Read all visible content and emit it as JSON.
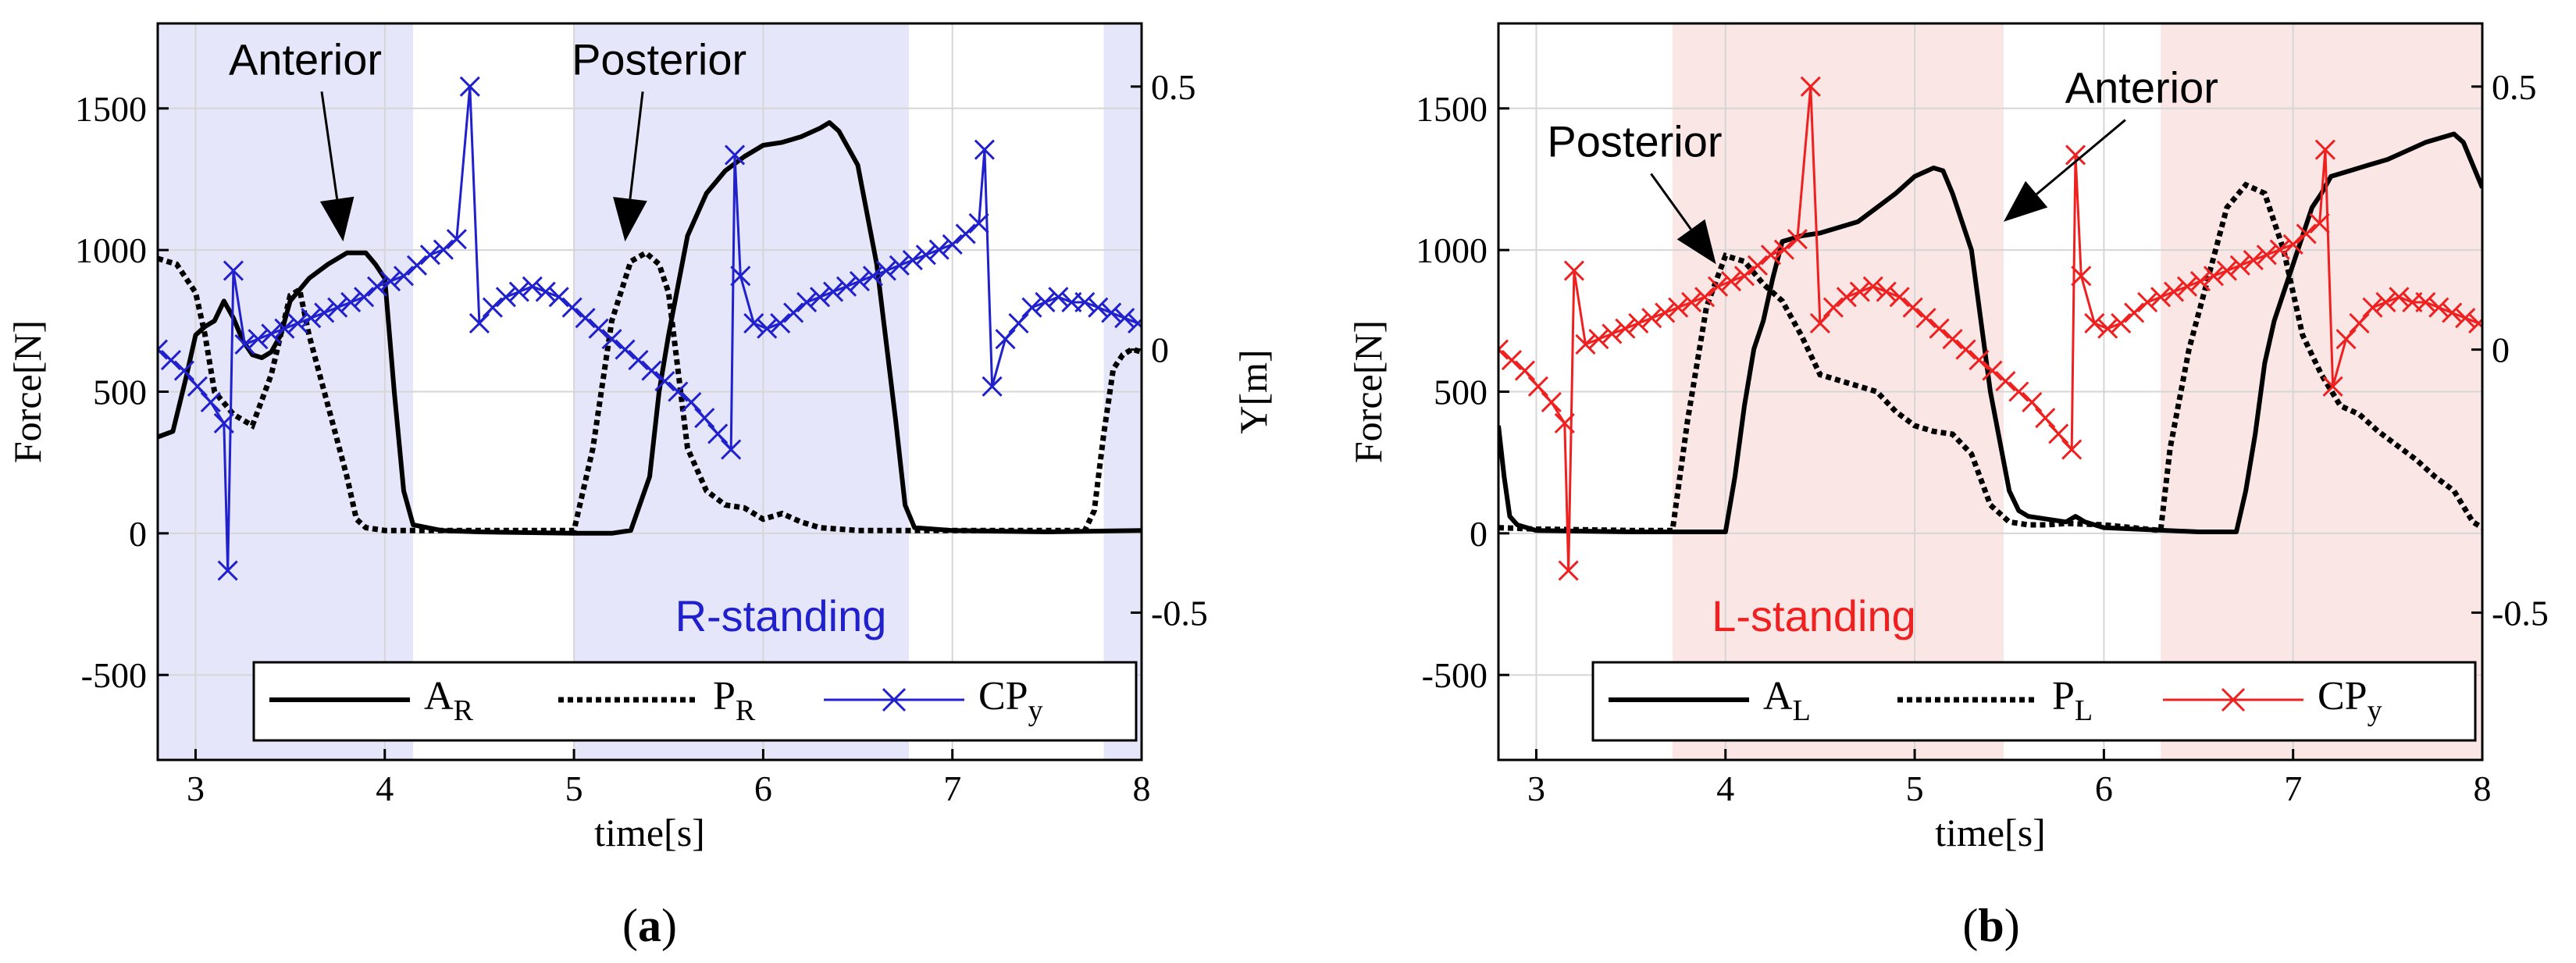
{
  "figure": {
    "panels": [
      {
        "label_open": "(",
        "label_letter": "a",
        "label_close": ")"
      },
      {
        "label_open": "(",
        "label_letter": "b",
        "label_close": ")"
      }
    ]
  },
  "chart_data": [
    {
      "type": "line",
      "panel": "a",
      "title": "",
      "xlabel": "time[s]",
      "ylabel": "Force[N]",
      "y2label": "Y[m]",
      "xlim": [
        2.8,
        8
      ],
      "ylim": [
        -800,
        1800
      ],
      "y2lim": [
        -0.78,
        0.62
      ],
      "xticks": [
        3,
        4,
        5,
        6,
        7,
        8
      ],
      "yticks": [
        -500,
        0,
        500,
        1000,
        1500
      ],
      "y2ticks": [
        -0.5,
        0,
        0.5
      ],
      "xtick_labels": [
        "3",
        "4",
        "5",
        "6",
        "7",
        "8"
      ],
      "ytick_labels": [
        "-500",
        "0",
        "500",
        "1000",
        "1500"
      ],
      "y2tick_labels": [
        "-0.5",
        "0",
        "0.5"
      ],
      "grid": true,
      "stance_label": "R-standing",
      "stance_color": "#2020cc",
      "stance_shade": "#e6e6fb",
      "shaded_intervals": [
        [
          2.8,
          4.15
        ],
        [
          5.0,
          6.77
        ],
        [
          7.8,
          8.0
        ]
      ],
      "annotations": [
        {
          "text": "Anterior",
          "text_x": 3.58,
          "text_y": 1620,
          "arrow_to_x": 3.78,
          "arrow_to_y": 1030
        },
        {
          "text": "Posterior",
          "text_x": 5.45,
          "text_y": 1620,
          "arrow_to_x": 5.27,
          "arrow_to_y": 1030
        }
      ],
      "legend": {
        "placement": "bottom",
        "entries": [
          "A",
          "P",
          "CP"
        ],
        "subscripts": [
          "R",
          "R",
          "y"
        ]
      },
      "series": [
        {
          "name": "A_R",
          "axis": "left",
          "style": "solid",
          "color": "#000000",
          "x": [
            2.8,
            2.88,
            2.95,
            3.0,
            3.05,
            3.1,
            3.15,
            3.2,
            3.25,
            3.3,
            3.35,
            3.4,
            3.45,
            3.5,
            3.6,
            3.7,
            3.8,
            3.9,
            3.95,
            4.0,
            4.05,
            4.1,
            4.15,
            4.3,
            4.5,
            5.0,
            5.2,
            5.3,
            5.4,
            5.45,
            5.5,
            5.6,
            5.7,
            5.8,
            5.9,
            6.0,
            6.1,
            6.2,
            6.3,
            6.35,
            6.4,
            6.5,
            6.6,
            6.7,
            6.75,
            6.8,
            7.0,
            7.5,
            8.0
          ],
          "y": [
            340,
            360,
            550,
            700,
            730,
            750,
            820,
            760,
            680,
            630,
            620,
            640,
            700,
            820,
            900,
            950,
            990,
            990,
            950,
            900,
            500,
            150,
            30,
            10,
            5,
            0,
            0,
            10,
            200,
            500,
            700,
            1050,
            1200,
            1280,
            1330,
            1370,
            1380,
            1400,
            1430,
            1450,
            1420,
            1300,
            950,
            400,
            100,
            20,
            10,
            5,
            10
          ]
        },
        {
          "name": "P_R",
          "axis": "left",
          "style": "dotted",
          "color": "#000000",
          "x": [
            2.8,
            2.9,
            3.0,
            3.05,
            3.1,
            3.2,
            3.3,
            3.4,
            3.5,
            3.55,
            3.6,
            3.7,
            3.8,
            3.85,
            3.9,
            4.0,
            4.5,
            5.0,
            5.1,
            5.2,
            5.3,
            5.38,
            5.45,
            5.5,
            5.6,
            5.7,
            5.8,
            5.9,
            6.0,
            6.1,
            6.2,
            6.3,
            6.5,
            7.0,
            7.5,
            7.7,
            7.75,
            7.8,
            7.85,
            7.9,
            7.95,
            8.0
          ],
          "y": [
            970,
            950,
            850,
            700,
            500,
            420,
            380,
            560,
            840,
            860,
            700,
            450,
            200,
            50,
            20,
            10,
            10,
            10,
            300,
            750,
            960,
            990,
            950,
            850,
            300,
            150,
            100,
            90,
            50,
            70,
            40,
            20,
            10,
            10,
            10,
            10,
            80,
            350,
            580,
            630,
            650,
            640
          ]
        },
        {
          "name": "CP_y",
          "axis": "right",
          "style": "solid-x",
          "color": "#2020cc",
          "x": [
            2.8,
            2.87,
            2.94,
            3.01,
            3.08,
            3.15,
            3.17,
            3.2,
            3.26,
            3.33,
            3.4,
            3.47,
            3.54,
            3.61,
            3.68,
            3.75,
            3.82,
            3.89,
            3.96,
            4.03,
            4.1,
            4.17,
            4.24,
            4.31,
            4.38,
            4.45,
            4.5,
            4.57,
            4.64,
            4.71,
            4.78,
            4.85,
            4.92,
            4.99,
            5.06,
            5.13,
            5.2,
            5.27,
            5.34,
            5.41,
            5.48,
            5.55,
            5.62,
            5.69,
            5.76,
            5.83,
            5.85,
            5.88,
            5.95,
            6.02,
            6.09,
            6.16,
            6.23,
            6.3,
            6.37,
            6.44,
            6.51,
            6.58,
            6.65,
            6.72,
            6.79,
            6.86,
            6.93,
            7.0,
            7.07,
            7.14,
            7.17,
            7.21,
            7.28,
            7.35,
            7.42,
            7.49,
            7.56,
            7.63,
            7.7,
            7.77,
            7.84,
            7.91,
            7.98
          ],
          "y": [
            0.0,
            -0.02,
            -0.04,
            -0.07,
            -0.1,
            -0.14,
            -0.42,
            0.15,
            0.01,
            0.02,
            0.03,
            0.04,
            0.05,
            0.06,
            0.07,
            0.08,
            0.09,
            0.1,
            0.12,
            0.13,
            0.14,
            0.16,
            0.18,
            0.19,
            0.21,
            0.5,
            0.05,
            0.08,
            0.1,
            0.11,
            0.12,
            0.11,
            0.1,
            0.08,
            0.06,
            0.04,
            0.02,
            0.0,
            -0.02,
            -0.04,
            -0.06,
            -0.08,
            -0.1,
            -0.13,
            -0.16,
            -0.19,
            0.37,
            0.14,
            0.05,
            0.04,
            0.05,
            0.07,
            0.09,
            0.1,
            0.11,
            0.12,
            0.13,
            0.14,
            0.15,
            0.16,
            0.17,
            0.18,
            0.19,
            0.2,
            0.22,
            0.24,
            0.38,
            -0.07,
            0.02,
            0.05,
            0.08,
            0.09,
            0.1,
            0.09,
            0.09,
            0.08,
            0.07,
            0.06,
            0.05
          ]
        }
      ]
    },
    {
      "type": "line",
      "panel": "b",
      "title": "",
      "xlabel": "time[s]",
      "ylabel": "Force[N]",
      "y2label": "Y[m]",
      "xlim": [
        2.8,
        8
      ],
      "ylim": [
        -800,
        1800
      ],
      "y2lim": [
        -0.78,
        0.62
      ],
      "xticks": [
        3,
        4,
        5,
        6,
        7,
        8
      ],
      "yticks": [
        -500,
        0,
        500,
        1000,
        1500
      ],
      "y2ticks": [
        -0.5,
        0,
        0.5
      ],
      "xtick_labels": [
        "3",
        "4",
        "5",
        "6",
        "7",
        "8"
      ],
      "ytick_labels": [
        "-500",
        "0",
        "500",
        "1000",
        "1500"
      ],
      "y2tick_labels": [
        "-0.5",
        "0",
        "0.5"
      ],
      "grid": true,
      "stance_label": "L-standing",
      "stance_color": "#ee2020",
      "stance_shade": "#fbe6e6",
      "shaded_intervals": [
        [
          3.72,
          5.47
        ],
        [
          6.3,
          8.0
        ]
      ],
      "annotations": [
        {
          "text": "Posterior",
          "text_x": 3.52,
          "text_y": 1330,
          "arrow_to_x": 3.95,
          "arrow_to_y": 950
        },
        {
          "text": "Anterior",
          "text_x": 6.2,
          "text_y": 1520,
          "arrow_to_x": 5.47,
          "arrow_to_y": 1100
        }
      ],
      "legend": {
        "placement": "bottom",
        "entries": [
          "A",
          "P",
          "CP"
        ],
        "subscripts": [
          "L",
          "L",
          "y"
        ]
      },
      "series": [
        {
          "name": "A_L",
          "axis": "left",
          "style": "solid",
          "color": "#000000",
          "x": [
            2.8,
            2.83,
            2.86,
            2.9,
            3.0,
            3.5,
            4.0,
            4.05,
            4.1,
            4.15,
            4.2,
            4.25,
            4.3,
            4.4,
            4.5,
            4.6,
            4.7,
            4.8,
            4.9,
            5.0,
            5.1,
            5.15,
            5.2,
            5.3,
            5.4,
            5.5,
            5.55,
            5.6,
            5.7,
            5.8,
            5.85,
            5.9,
            6.0,
            6.5,
            6.7,
            6.75,
            6.8,
            6.85,
            6.9,
            6.95,
            7.0,
            7.05,
            7.1,
            7.15,
            7.2,
            7.3,
            7.4,
            7.5,
            7.6,
            7.7,
            7.8,
            7.85,
            7.9,
            8.0
          ],
          "y": [
            380,
            200,
            60,
            30,
            10,
            5,
            5,
            200,
            450,
            650,
            750,
            900,
            1030,
            1050,
            1060,
            1080,
            1100,
            1150,
            1200,
            1260,
            1290,
            1280,
            1200,
            1000,
            500,
            150,
            80,
            60,
            50,
            40,
            60,
            40,
            20,
            5,
            5,
            150,
            350,
            600,
            750,
            850,
            950,
            1050,
            1150,
            1200,
            1260,
            1280,
            1300,
            1320,
            1350,
            1380,
            1400,
            1410,
            1380,
            1220
          ]
        },
        {
          "name": "P_L",
          "axis": "left",
          "style": "dotted",
          "color": "#000000",
          "x": [
            2.8,
            3.0,
            3.5,
            3.72,
            3.8,
            3.9,
            4.0,
            4.1,
            4.2,
            4.3,
            4.4,
            4.5,
            4.6,
            4.7,
            4.8,
            4.9,
            5.0,
            5.1,
            5.2,
            5.3,
            5.4,
            5.5,
            5.6,
            5.7,
            5.8,
            6.0,
            6.3,
            6.35,
            6.45,
            6.55,
            6.65,
            6.75,
            6.85,
            6.95,
            7.05,
            7.15,
            7.25,
            7.35,
            7.45,
            7.55,
            7.65,
            7.75,
            7.85,
            7.95,
            8.0
          ],
          "y": [
            20,
            15,
            10,
            10,
            400,
            800,
            980,
            960,
            880,
            820,
            700,
            560,
            540,
            520,
            500,
            430,
            380,
            360,
            350,
            280,
            100,
            40,
            30,
            30,
            35,
            30,
            10,
            300,
            650,
            900,
            1150,
            1230,
            1200,
            1000,
            700,
            560,
            450,
            420,
            360,
            310,
            260,
            200,
            150,
            40,
            20
          ]
        },
        {
          "name": "CP_y",
          "axis": "right",
          "style": "solid-x",
          "color": "#ee2020",
          "x": [
            2.8,
            2.87,
            2.94,
            3.01,
            3.08,
            3.15,
            3.17,
            3.2,
            3.26,
            3.33,
            3.4,
            3.47,
            3.54,
            3.61,
            3.68,
            3.75,
            3.82,
            3.89,
            3.96,
            4.03,
            4.1,
            4.17,
            4.24,
            4.31,
            4.38,
            4.45,
            4.5,
            4.57,
            4.64,
            4.71,
            4.78,
            4.85,
            4.92,
            4.99,
            5.06,
            5.13,
            5.2,
            5.27,
            5.34,
            5.41,
            5.48,
            5.55,
            5.62,
            5.69,
            5.76,
            5.83,
            5.85,
            5.88,
            5.95,
            6.02,
            6.09,
            6.16,
            6.23,
            6.3,
            6.37,
            6.44,
            6.51,
            6.58,
            6.65,
            6.72,
            6.79,
            6.86,
            6.93,
            7.0,
            7.07,
            7.14,
            7.17,
            7.21,
            7.28,
            7.35,
            7.42,
            7.49,
            7.56,
            7.63,
            7.7,
            7.77,
            7.84,
            7.91,
            7.98
          ],
          "y": [
            0.0,
            -0.02,
            -0.04,
            -0.07,
            -0.1,
            -0.14,
            -0.42,
            0.15,
            0.01,
            0.02,
            0.03,
            0.04,
            0.05,
            0.06,
            0.07,
            0.08,
            0.09,
            0.1,
            0.12,
            0.13,
            0.14,
            0.16,
            0.18,
            0.19,
            0.21,
            0.5,
            0.05,
            0.08,
            0.1,
            0.11,
            0.12,
            0.11,
            0.1,
            0.08,
            0.06,
            0.04,
            0.02,
            0.0,
            -0.02,
            -0.04,
            -0.06,
            -0.08,
            -0.1,
            -0.13,
            -0.16,
            -0.19,
            0.37,
            0.14,
            0.05,
            0.04,
            0.05,
            0.07,
            0.09,
            0.1,
            0.11,
            0.12,
            0.13,
            0.14,
            0.15,
            0.16,
            0.17,
            0.18,
            0.19,
            0.2,
            0.22,
            0.24,
            0.38,
            -0.07,
            0.02,
            0.05,
            0.08,
            0.09,
            0.1,
            0.09,
            0.09,
            0.08,
            0.07,
            0.06,
            0.05
          ]
        }
      ]
    }
  ]
}
